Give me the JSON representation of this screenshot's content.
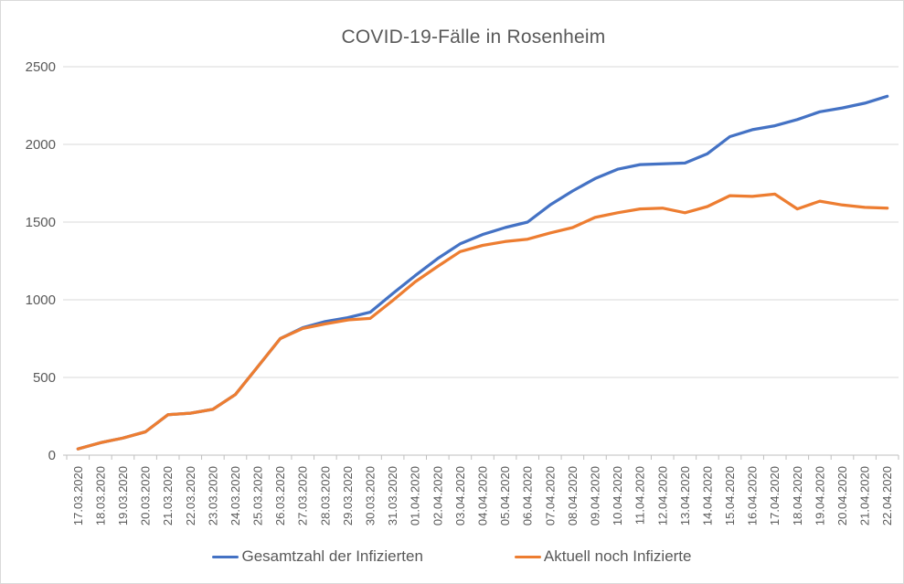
{
  "chart_data": {
    "type": "line",
    "title": "COVID-19-Fälle in Rosenheim",
    "xlabel": "",
    "ylabel": "",
    "x_categories": [
      "17.03.2020",
      "18.03.2020",
      "19.03.2020",
      "20.03.2020",
      "21.03.2020",
      "22.03.2020",
      "23.03.2020",
      "24.03.2020",
      "25.03.2020",
      "26.03.2020",
      "27.03.2020",
      "28.03.2020",
      "29.03.2020",
      "30.03.2020",
      "31.03.2020",
      "01.04.2020",
      "02.04.2020",
      "03.04.2020",
      "04.04.2020",
      "05.04.2020",
      "06.04.2020",
      "07.04.2020",
      "08.04.2020",
      "09.04.2020",
      "10.04.2020",
      "11.04.2020",
      "12.04.2020",
      "13.04.2020",
      "14.04.2020",
      "15.04.2020",
      "16.04.2020",
      "17.04.2020",
      "18.04.2020",
      "19.04.2020",
      "20.04.2020",
      "21.04.2020",
      "22.04.2020"
    ],
    "y_axis": {
      "min": 0,
      "max": 2500,
      "step": 500,
      "tick_labels": [
        "0",
        "500",
        "1000",
        "1500",
        "2000",
        "2500"
      ]
    },
    "grid": "horizontal",
    "legend_position": "bottom",
    "series": [
      {
        "name": "Gesamtzahl der Infizierten",
        "color": "#4472C4",
        "values": [
          40,
          80,
          110,
          150,
          260,
          270,
          295,
          390,
          570,
          750,
          820,
          860,
          885,
          920,
          1040,
          1155,
          1265,
          1360,
          1420,
          1465,
          1500,
          1610,
          1700,
          1780,
          1840,
          1870,
          1875,
          1880,
          1940,
          2050,
          2095,
          2120,
          2160,
          2210,
          2235,
          2265,
          2310
        ]
      },
      {
        "name": "Aktuell noch Infizierte",
        "color": "#ED7D31",
        "values": [
          40,
          80,
          110,
          150,
          260,
          270,
          295,
          390,
          570,
          750,
          815,
          845,
          870,
          880,
          995,
          1115,
          1215,
          1310,
          1350,
          1375,
          1390,
          1430,
          1465,
          1530,
          1560,
          1585,
          1590,
          1560,
          1600,
          1670,
          1665,
          1680,
          1585,
          1635,
          1610,
          1595,
          1590
        ]
      }
    ]
  },
  "colors": {
    "text": "#595959",
    "gridline": "#D9D9D9",
    "axis_line": "#BFBFBF",
    "background": "#FFFFFF",
    "border": "#D9D9D9"
  }
}
